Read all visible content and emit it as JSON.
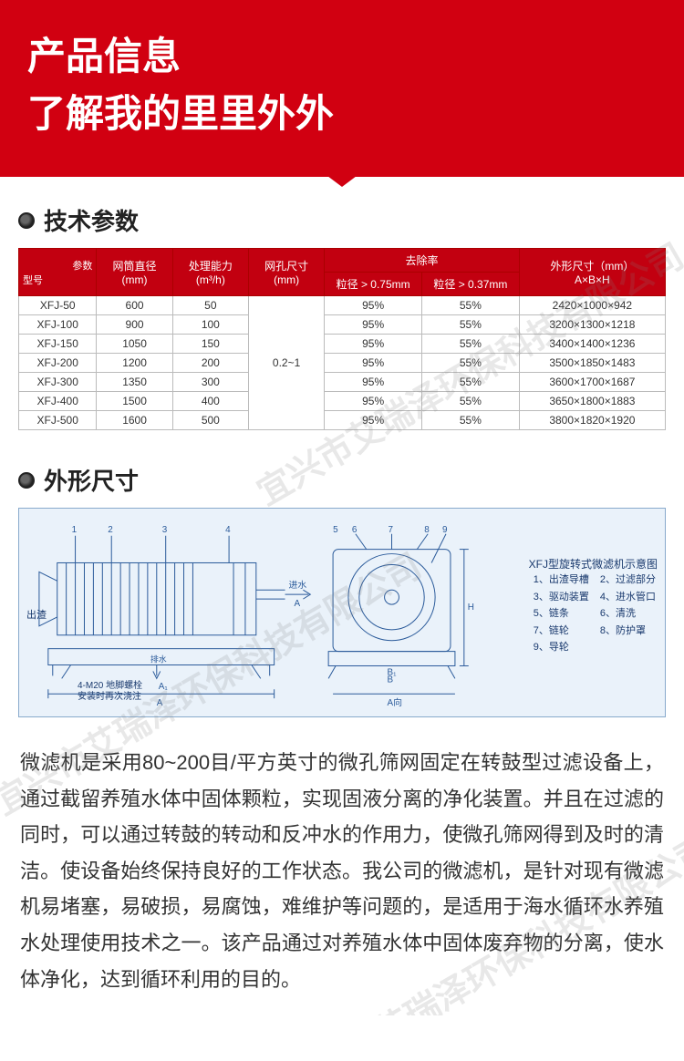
{
  "header": {
    "title1": "产品信息",
    "title2": "了解我的里里外外"
  },
  "colors": {
    "brand_red": "#d10011",
    "table_header": "#c20010",
    "diagram_bg": "#eaf2fa",
    "diagram_border": "#88aacc",
    "text": "#333333"
  },
  "section1": {
    "title": "技术参数"
  },
  "spec_table": {
    "header": {
      "param": "参数",
      "model": "型号",
      "drum_dia": "网筒直径",
      "drum_dia_unit": "(mm)",
      "capacity": "处理能力",
      "capacity_unit": "(m³/h)",
      "mesh": "网孔尺寸",
      "mesh_unit": "(mm)",
      "removal": "去除率",
      "removal_1": "粒径 > 0.75mm",
      "removal_2": "粒径 > 0.37mm",
      "dim": "外形尺寸（mm）",
      "dim2": "A×B×H"
    },
    "mesh_value": "0.2~1",
    "rows": [
      {
        "model": "XFJ-50",
        "dia": "600",
        "cap": "50",
        "r1": "95%",
        "r2": "55%",
        "dim": "2420×1000×942"
      },
      {
        "model": "XFJ-100",
        "dia": "900",
        "cap": "100",
        "r1": "95%",
        "r2": "55%",
        "dim": "3200×1300×1218"
      },
      {
        "model": "XFJ-150",
        "dia": "1050",
        "cap": "150",
        "r1": "95%",
        "r2": "55%",
        "dim": "3400×1400×1236"
      },
      {
        "model": "XFJ-200",
        "dia": "1200",
        "cap": "200",
        "r1": "95%",
        "r2": "55%",
        "dim": "3500×1850×1483"
      },
      {
        "model": "XFJ-300",
        "dia": "1350",
        "cap": "300",
        "r1": "95%",
        "r2": "55%",
        "dim": "3600×1700×1687"
      },
      {
        "model": "XFJ-400",
        "dia": "1500",
        "cap": "400",
        "r1": "95%",
        "r2": "55%",
        "dim": "3650×1800×1883"
      },
      {
        "model": "XFJ-500",
        "dia": "1600",
        "cap": "500",
        "r1": "95%",
        "r2": "55%",
        "dim": "3800×1820×1920"
      }
    ]
  },
  "section2": {
    "title": "外形尺寸"
  },
  "diagram": {
    "type": "flowchart",
    "title": "XFJ型旋转式微滤机示意图",
    "legend_items": [
      "1、出渣导槽",
      "2、过滤部分",
      "3、驱动装置",
      "4、进水管口",
      "5、链条",
      "6、清洗",
      "7、链轮",
      "8、防护罩",
      "9、导轮"
    ],
    "annotations": {
      "outlet": "出渣",
      "inlet_water": "进水",
      "drain": "排水",
      "bolt_note": "4-M20 地脚螺栓",
      "install_note": "安装时再次浇注",
      "view_a": "A向",
      "dim_a": "A",
      "dim_a1": "A₁",
      "dim_b": "B",
      "dim_b1": "B₁"
    },
    "diagram_callouts": [
      "1",
      "2",
      "3",
      "4",
      "5",
      "6",
      "7",
      "8",
      "9"
    ],
    "stroke_color": "#2a5a9a",
    "fill_color": "#eaf2fa"
  },
  "description": {
    "text": "微滤机是采用80~200目/平方英寸的微孔筛网固定在转鼓型过滤设备上，通过截留养殖水体中固体颗粒，实现固液分离的净化装置。并且在过滤的同时，可以通过转鼓的转动和反冲水的作用力，使微孔筛网得到及时的清洁。使设备始终保持良好的工作状态。我公司的微滤机，是针对现有微滤机易堵塞，易破损，易腐蚀，难维护等问题的，是适用于海水循环水养殖水处理使用技术之一。该产品通过对养殖水体中固体废弃物的分离，使水体净化，达到循环利用的目的。"
  },
  "watermark": {
    "text": "宜兴市艾瑞泽环保科技有限公司"
  }
}
